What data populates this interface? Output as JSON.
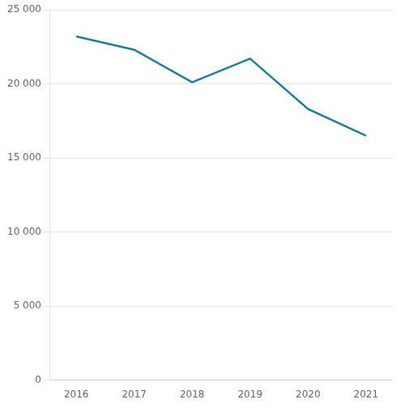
{
  "chart_data": {
    "type": "line",
    "x": [
      2016,
      2017,
      2018,
      2019,
      2020,
      2021
    ],
    "values": [
      23200,
      22300,
      20100,
      21700,
      18300,
      16500
    ],
    "color": "#1a7fa0",
    "xlim": [
      2015.55,
      2021.45
    ],
    "xticks": [
      2016,
      2017,
      2018,
      2019,
      2020,
      2021
    ],
    "ylim": [
      0,
      25000
    ],
    "yticks": [
      0,
      {
        "value": 5000,
        "label": "5 000"
      },
      {
        "value": 10000,
        "label": "10 000"
      },
      {
        "value": 15000,
        "label": "15 000"
      },
      {
        "value": 20000,
        "label": "20 000"
      },
      {
        "value": 25000,
        "label": "25 000"
      }
    ],
    "grid": "y"
  }
}
